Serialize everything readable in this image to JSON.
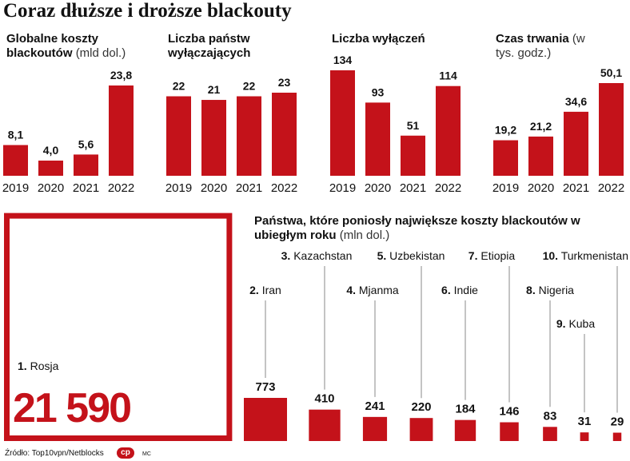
{
  "title": "Coraz dłuższe i droższe blackouty",
  "source": "Źródło: Top10vpn/Netblocks",
  "logo": "cp",
  "credit": "MC",
  "chart_data": [
    {
      "type": "bar",
      "title": "Globalne koszty blackoutów",
      "unit": "(mld dol.)",
      "color": "#c4121a",
      "categories": [
        "2019",
        "2020",
        "2021",
        "2022"
      ],
      "values": [
        8.1,
        4.0,
        5.6,
        23.8
      ],
      "value_labels": [
        "8,1",
        "4,0",
        "5,6",
        "23,8"
      ]
    },
    {
      "type": "bar",
      "title": "Liczba państw wyłączających",
      "color": "#c4121a",
      "categories": [
        "2019",
        "2020",
        "2021",
        "2022"
      ],
      "values": [
        22,
        21,
        22,
        23
      ]
    },
    {
      "type": "bar",
      "title": "Liczba wyłączeń",
      "color": "#c4121a",
      "categories": [
        "2019",
        "2020",
        "2021",
        "2022"
      ],
      "values": [
        134,
        93,
        51,
        114
      ]
    },
    {
      "type": "bar",
      "title": "Czas trwania",
      "unit": "(w tys. godz.)",
      "color": "#c4121a",
      "categories": [
        "2019",
        "2020",
        "2021",
        "2022"
      ],
      "values": [
        19.2,
        21.2,
        34.6,
        50.1
      ],
      "value_labels": [
        "19,2",
        "21,2",
        "34,6",
        "50,1"
      ]
    },
    {
      "type": "square",
      "title": "Państwa, które poniosły największe koszty blackoutów w ubiegłym roku",
      "unit": "(mln dol.)",
      "color": "#c4121a",
      "ranks": [
        "1.",
        "2.",
        "3.",
        "4.",
        "5.",
        "6.",
        "7.",
        "8.",
        "9.",
        "10."
      ],
      "categories": [
        "Rosja",
        "Iran",
        "Kazachstan",
        "Mjanma",
        "Uzbekistan",
        "Indie",
        "Etiopia",
        "Nigeria",
        "Kuba",
        "Turkmenistan"
      ],
      "values": [
        21590,
        773,
        410,
        241,
        220,
        184,
        146,
        83,
        31,
        29
      ],
      "value_labels": [
        "21 590",
        "773",
        "410",
        "241",
        "220",
        "184",
        "146",
        "83",
        "31",
        "29"
      ]
    }
  ]
}
